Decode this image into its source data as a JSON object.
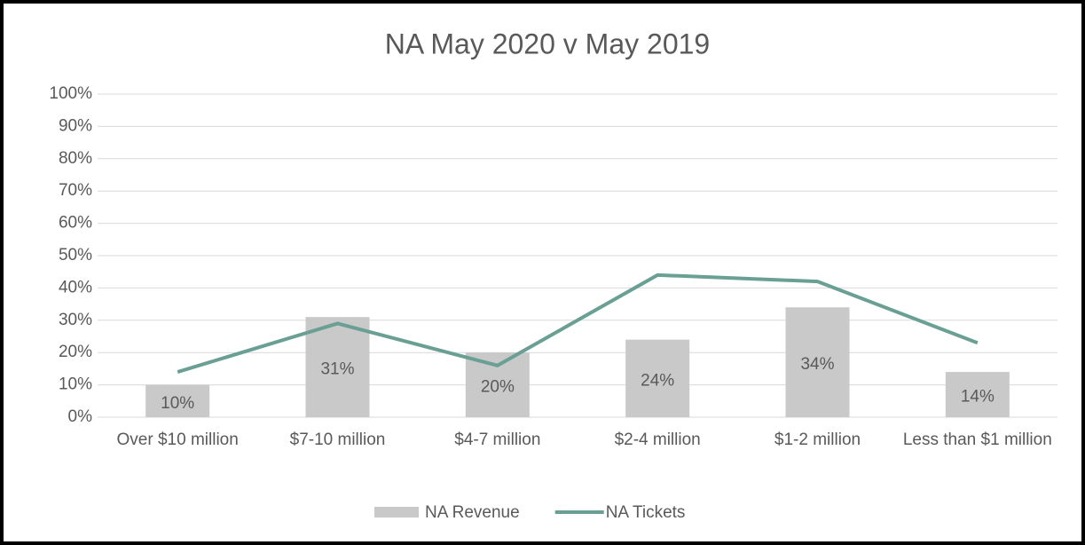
{
  "chart_data": {
    "type": "combo",
    "title": "NA May 2020 v May 2019",
    "categories": [
      "Over $10 million",
      "$7-10 million",
      "$4-7 million",
      "$2-4 million",
      "$1-2 million",
      "Less than $1 million"
    ],
    "series": [
      {
        "name": "NA Revenue",
        "type": "bar",
        "color": "#c9c9c9",
        "values": [
          10,
          31,
          20,
          24,
          34,
          14
        ],
        "value_labels": [
          "10%",
          "31%",
          "20%",
          "24%",
          "34%",
          "14%"
        ]
      },
      {
        "name": "NA Tickets",
        "type": "line",
        "color": "#6a9f94",
        "values": [
          14,
          29,
          16,
          44,
          42,
          23
        ]
      }
    ],
    "ylim": [
      0,
      100
    ],
    "yticks": [
      {
        "value": 0,
        "label": "0%"
      },
      {
        "value": 10,
        "label": "10%"
      },
      {
        "value": 20,
        "label": "20%"
      },
      {
        "value": 30,
        "label": "30%"
      },
      {
        "value": 40,
        "label": "40%"
      },
      {
        "value": 50,
        "label": "50%"
      },
      {
        "value": 60,
        "label": "60%"
      },
      {
        "value": 70,
        "label": "70%"
      },
      {
        "value": 80,
        "label": "80%"
      },
      {
        "value": 90,
        "label": "90%"
      },
      {
        "value": 100,
        "label": "100%"
      }
    ],
    "grid": true,
    "legend": "bottom"
  }
}
